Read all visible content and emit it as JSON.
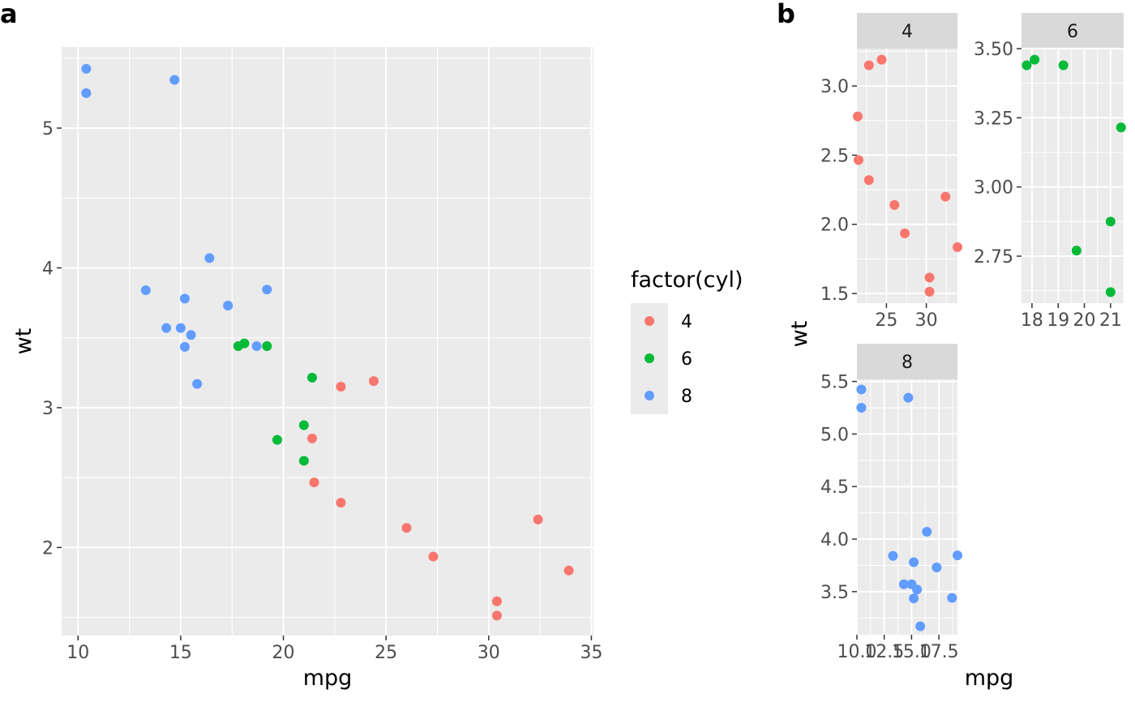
{
  "panel_tags": {
    "a": "a",
    "b": "b"
  },
  "legend": {
    "title": "factor(cyl)",
    "entries": [
      {
        "label": "4",
        "color": "#F8766D"
      },
      {
        "label": "6",
        "color": "#00BA38"
      },
      {
        "label": "8",
        "color": "#619CFF"
      }
    ]
  },
  "chart_data": [
    {
      "type": "scatter",
      "panel": "a",
      "xlabel": "mpg",
      "ylabel": "wt",
      "xlim": [
        9.2,
        35.1
      ],
      "ylim": [
        1.37,
        5.58
      ],
      "xticks": [
        10,
        15,
        20,
        25,
        30,
        35
      ],
      "yticks": [
        2,
        3,
        4,
        5
      ],
      "grid": true,
      "legend_position": "right",
      "series": [
        {
          "name": "4",
          "color": "#F8766D",
          "points": [
            {
              "x": 22.8,
              "y": 2.32
            },
            {
              "x": 24.4,
              "y": 3.19
            },
            {
              "x": 22.8,
              "y": 3.15
            },
            {
              "x": 32.4,
              "y": 2.2
            },
            {
              "x": 30.4,
              "y": 1.615
            },
            {
              "x": 33.9,
              "y": 1.835
            },
            {
              "x": 21.5,
              "y": 2.465
            },
            {
              "x": 27.3,
              "y": 1.935
            },
            {
              "x": 26.0,
              "y": 2.14
            },
            {
              "x": 30.4,
              "y": 1.513
            },
            {
              "x": 21.4,
              "y": 2.78
            }
          ]
        },
        {
          "name": "6",
          "color": "#00BA38",
          "points": [
            {
              "x": 21.0,
              "y": 2.62
            },
            {
              "x": 21.0,
              "y": 2.875
            },
            {
              "x": 21.4,
              "y": 3.215
            },
            {
              "x": 18.1,
              "y": 3.46
            },
            {
              "x": 19.2,
              "y": 3.44
            },
            {
              "x": 17.8,
              "y": 3.44
            },
            {
              "x": 19.7,
              "y": 2.77
            }
          ]
        },
        {
          "name": "8",
          "color": "#619CFF",
          "points": [
            {
              "x": 18.7,
              "y": 3.44
            },
            {
              "x": 14.3,
              "y": 3.57
            },
            {
              "x": 16.4,
              "y": 4.07
            },
            {
              "x": 17.3,
              "y": 3.73
            },
            {
              "x": 15.2,
              "y": 3.78
            },
            {
              "x": 10.4,
              "y": 5.25
            },
            {
              "x": 10.4,
              "y": 5.424
            },
            {
              "x": 14.7,
              "y": 5.345
            },
            {
              "x": 15.5,
              "y": 3.52
            },
            {
              "x": 15.2,
              "y": 3.435
            },
            {
              "x": 13.3,
              "y": 3.84
            },
            {
              "x": 19.2,
              "y": 3.845
            },
            {
              "x": 15.8,
              "y": 3.17
            },
            {
              "x": 15.0,
              "y": 3.57
            }
          ]
        }
      ]
    },
    {
      "type": "scatter",
      "panel": "b",
      "xlabel": "mpg",
      "ylabel": "wt",
      "facets": [
        {
          "strip": "4",
          "color": "#F8766D",
          "xlim": [
            21.3,
            33.9
          ],
          "ylim": [
            1.43,
            3.27
          ],
          "xticks": [
            25,
            30
          ],
          "yticks": [
            1.5,
            2.0,
            2.5,
            3.0
          ],
          "xticklabels": [
            "25",
            "30"
          ],
          "yticklabels": [
            "1.5",
            "2.0",
            "2.5",
            "3.0"
          ],
          "points": [
            {
              "x": 22.8,
              "y": 2.32
            },
            {
              "x": 24.4,
              "y": 3.19
            },
            {
              "x": 22.8,
              "y": 3.15
            },
            {
              "x": 32.4,
              "y": 2.2
            },
            {
              "x": 30.4,
              "y": 1.615
            },
            {
              "x": 33.9,
              "y": 1.835
            },
            {
              "x": 21.5,
              "y": 2.465
            },
            {
              "x": 27.3,
              "y": 1.935
            },
            {
              "x": 26.0,
              "y": 2.14
            },
            {
              "x": 30.4,
              "y": 1.513
            },
            {
              "x": 21.4,
              "y": 2.78
            }
          ]
        },
        {
          "strip": "6",
          "color": "#00BA38",
          "xlim": [
            17.6,
            21.5
          ],
          "ylim": [
            2.58,
            3.5
          ],
          "xticks": [
            18,
            19,
            20,
            21
          ],
          "yticks": [
            2.75,
            3.0,
            3.25,
            3.5
          ],
          "xticklabels": [
            "18",
            "19",
            "20",
            "21"
          ],
          "yticklabels": [
            "2.75",
            "3.00",
            "3.25",
            "3.50"
          ],
          "points": [
            {
              "x": 21.0,
              "y": 2.62
            },
            {
              "x": 21.0,
              "y": 2.875
            },
            {
              "x": 21.4,
              "y": 3.215
            },
            {
              "x": 18.1,
              "y": 3.46
            },
            {
              "x": 19.2,
              "y": 3.44
            },
            {
              "x": 17.8,
              "y": 3.44
            },
            {
              "x": 19.7,
              "y": 2.77
            }
          ]
        },
        {
          "strip": "8",
          "color": "#619CFF",
          "xlim": [
            10.0,
            19.2
          ],
          "ylim": [
            3.09,
            5.52
          ],
          "xticks": [
            10.0,
            12.5,
            15.0,
            17.5
          ],
          "yticks": [
            3.5,
            4.0,
            4.5,
            5.0,
            5.5
          ],
          "xticklabels": [
            "10.0",
            "12.5",
            "15.0",
            "17.5"
          ],
          "yticklabels": [
            "3.5",
            "4.0",
            "4.5",
            "5.0",
            "5.5"
          ],
          "points": [
            {
              "x": 18.7,
              "y": 3.44
            },
            {
              "x": 14.3,
              "y": 3.57
            },
            {
              "x": 16.4,
              "y": 4.07
            },
            {
              "x": 17.3,
              "y": 3.73
            },
            {
              "x": 15.2,
              "y": 3.78
            },
            {
              "x": 10.4,
              "y": 5.25
            },
            {
              "x": 10.4,
              "y": 5.424
            },
            {
              "x": 14.7,
              "y": 5.345
            },
            {
              "x": 15.5,
              "y": 3.52
            },
            {
              "x": 15.2,
              "y": 3.435
            },
            {
              "x": 13.3,
              "y": 3.84
            },
            {
              "x": 19.2,
              "y": 3.845
            },
            {
              "x": 15.8,
              "y": 3.17
            },
            {
              "x": 15.0,
              "y": 3.57
            }
          ]
        }
      ]
    }
  ]
}
